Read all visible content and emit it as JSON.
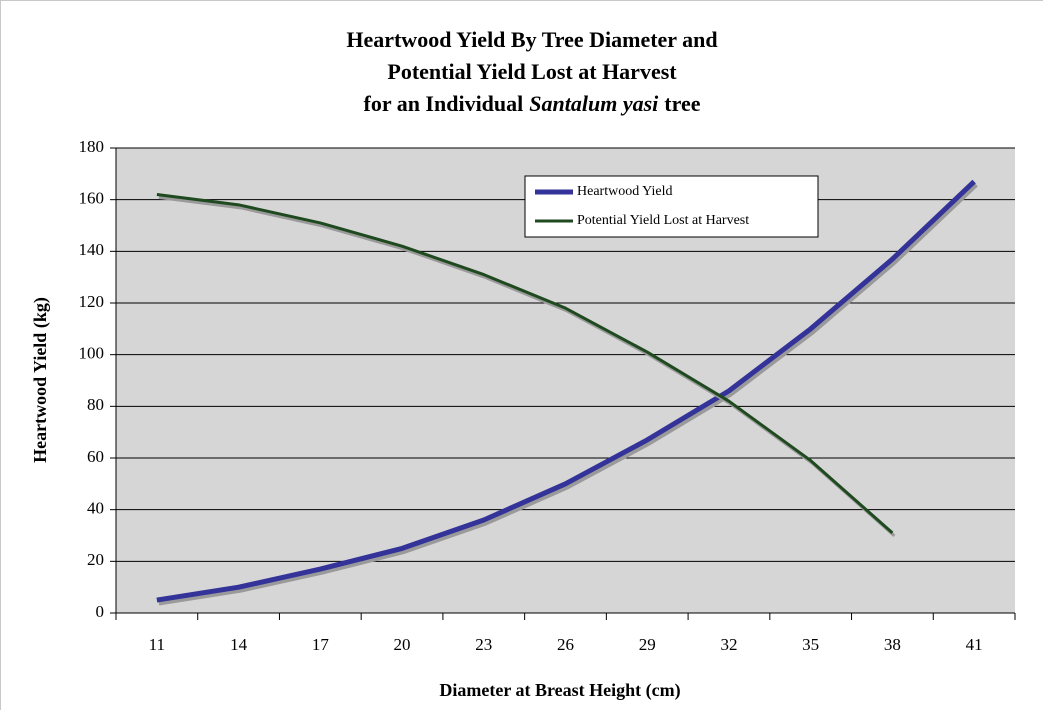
{
  "chart_data": {
    "type": "line",
    "title": [
      [
        "Heartwood Yield By Tree Diameter and"
      ],
      [
        "Potential Yield Lost at Harvest"
      ],
      [
        "for an Individual",
        "Santalum yasi",
        "tree"
      ]
    ],
    "x_label": "Diameter at Breast Height (cm)",
    "y_label": "Heartwood Yield (kg)",
    "categories": [
      "11",
      "14",
      "17",
      "20",
      "23",
      "26",
      "29",
      "32",
      "35",
      "38",
      "41"
    ],
    "series": [
      {
        "name": "Heartwood Yield",
        "color": "#333399",
        "values": [
          5,
          10,
          17,
          25,
          36,
          50,
          67,
          86,
          110,
          137,
          167
        ]
      },
      {
        "name": "Potential Yield Lost at Harvest",
        "color": "#1f4a1f",
        "values": [
          162,
          158,
          151,
          142,
          131,
          118,
          101,
          82,
          59,
          31,
          null
        ]
      }
    ],
    "ylim": [
      0,
      180
    ],
    "yticks": [
      0,
      20,
      40,
      60,
      80,
      100,
      120,
      140,
      160,
      180
    ],
    "grid": true,
    "legend": "top-right"
  }
}
